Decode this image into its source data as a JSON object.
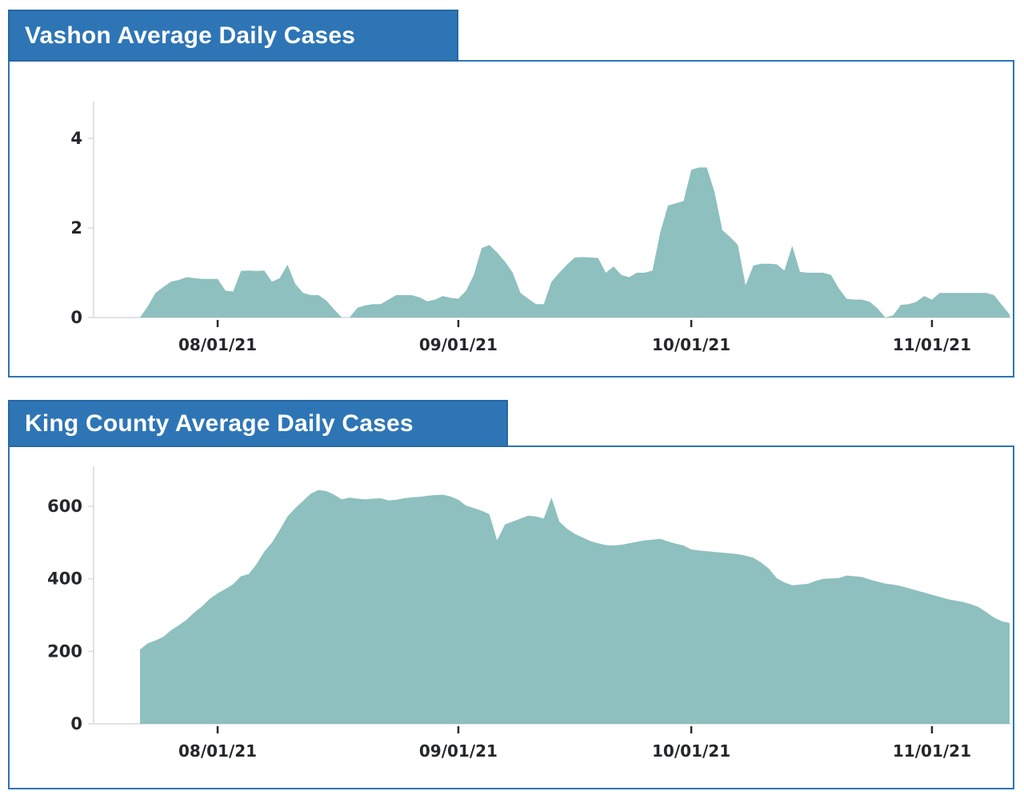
{
  "colors": {
    "background": "#ffffff",
    "banner_fill": "#2e75b6",
    "banner_border": "#2767a4",
    "panel_border": "#2e75b6",
    "area_fill": "#8dc0bf",
    "axis_line": "#d9d9d9",
    "x_tick_mark": "#2b2b33",
    "axis_label": "#26272c",
    "title_text": "#ffffff"
  },
  "chart_data": [
    {
      "type": "area",
      "title": "Vashon Average Daily Cases",
      "xlabel": "",
      "ylabel": "",
      "ylim": [
        0,
        5
      ],
      "grid": false,
      "legend": false,
      "y_ticks": [
        0,
        2,
        4
      ],
      "x_tick_labels": [
        "08/01/21",
        "09/01/21",
        "10/01/21",
        "11/01/21"
      ],
      "x_tick_indices": [
        10,
        41,
        71,
        102
      ],
      "x_unit": "daily points (estimated); index 0 is about 10 days before 08/01/21",
      "series": [
        {
          "name": "Vashon average daily cases",
          "values": [
            0,
            0.25,
            0.55,
            0.68,
            0.8,
            0.84,
            0.9,
            0.88,
            0.86,
            0.86,
            0.86,
            0.6,
            0.58,
            1.04,
            1.05,
            1.04,
            1.05,
            0.8,
            0.88,
            1.18,
            0.75,
            0.55,
            0.5,
            0.5,
            0.38,
            0.18,
            0.0,
            0.0,
            0.22,
            0.27,
            0.3,
            0.3,
            0.4,
            0.5,
            0.5,
            0.5,
            0.45,
            0.36,
            0.4,
            0.48,
            0.44,
            0.42,
            0.6,
            0.95,
            1.55,
            1.62,
            1.45,
            1.25,
            1.0,
            0.55,
            0.42,
            0.3,
            0.3,
            0.8,
            1.0,
            1.18,
            1.34,
            1.35,
            1.34,
            1.33,
            1.0,
            1.14,
            0.95,
            0.9,
            1.0,
            1.0,
            1.05,
            1.9,
            2.5,
            2.55,
            2.6,
            3.3,
            3.35,
            3.35,
            2.8,
            1.95,
            1.8,
            1.62,
            0.72,
            1.16,
            1.2,
            1.2,
            1.19,
            1.05,
            1.6,
            1.02,
            1.0,
            1.0,
            1.0,
            0.95,
            0.65,
            0.42,
            0.4,
            0.4,
            0.35,
            0.2,
            0.0,
            0.05,
            0.28,
            0.3,
            0.35,
            0.48,
            0.4,
            0.55,
            0.55,
            0.55,
            0.55,
            0.55,
            0.55,
            0.55,
            0.5,
            0.28,
            0.07
          ]
        }
      ]
    },
    {
      "type": "area",
      "title": "King County Average Daily Cases",
      "xlabel": "",
      "ylabel": "",
      "ylim": [
        0,
        715
      ],
      "grid": false,
      "legend": false,
      "y_ticks": [
        0,
        200,
        400,
        600
      ],
      "x_tick_labels": [
        "08/01/21",
        "09/01/21",
        "10/01/21",
        "11/01/21"
      ],
      "x_tick_indices": [
        10,
        41,
        71,
        102
      ],
      "x_unit": "daily points (estimated); index 0 is about 10 days before 08/01/21",
      "series": [
        {
          "name": "King County average daily cases",
          "values": [
            205,
            222,
            230,
            240,
            258,
            272,
            287,
            307,
            324,
            345,
            360,
            372,
            385,
            407,
            413,
            440,
            475,
            500,
            535,
            572,
            595,
            615,
            635,
            645,
            642,
            632,
            619,
            624,
            621,
            619,
            621,
            622,
            616,
            618,
            622,
            625,
            626,
            629,
            631,
            632,
            627,
            618,
            602,
            595,
            588,
            578,
            506,
            550,
            558,
            566,
            574,
            572,
            566,
            624,
            558,
            538,
            524,
            514,
            504,
            498,
            493,
            492,
            494,
            498,
            502,
            506,
            508,
            510,
            503,
            497,
            492,
            481,
            478,
            476,
            474,
            472,
            470,
            468,
            464,
            458,
            445,
            428,
            402,
            390,
            382,
            384,
            386,
            394,
            400,
            401,
            402,
            409,
            407,
            405,
            398,
            392,
            387,
            384,
            380,
            374,
            368,
            362,
            356,
            350,
            344,
            340,
            336,
            330,
            322,
            308,
            293,
            283,
            278
          ]
        }
      ]
    }
  ]
}
